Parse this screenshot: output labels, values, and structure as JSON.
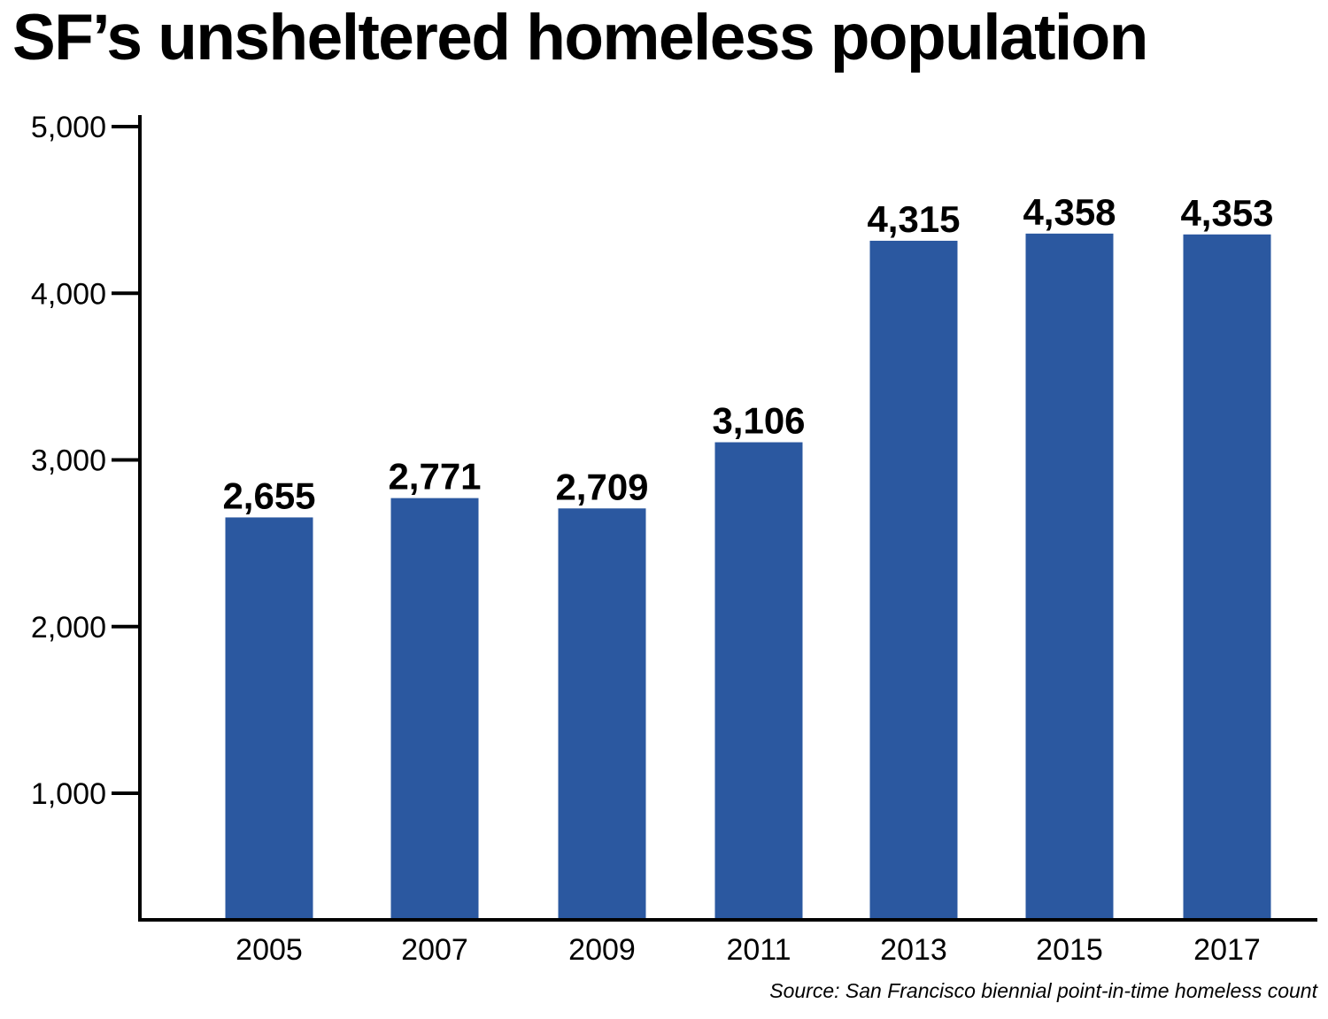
{
  "chart_data": {
    "type": "bar",
    "title": "SF’s unsheltered homeless population",
    "categories": [
      "2005",
      "2007",
      "2009",
      "2011",
      "2013",
      "2015",
      "2017"
    ],
    "values": [
      2655,
      2771,
      2709,
      3106,
      4315,
      4358,
      4353
    ],
    "data_labels": [
      "2,655",
      "2,771",
      "2,709",
      "3,106",
      "4,315",
      "4,358",
      "4,353"
    ],
    "yticks": [
      1000,
      2000,
      3000,
      4000,
      5000
    ],
    "ytick_labels": [
      "1,000",
      "2,000",
      "3,000",
      "4,000",
      "5,000"
    ],
    "xlabel": "",
    "ylabel": "",
    "grid": false,
    "legend": "none",
    "bar_color": "#2b58a0",
    "source": "Source: San Francisco biennial point-in-time homeless count"
  }
}
